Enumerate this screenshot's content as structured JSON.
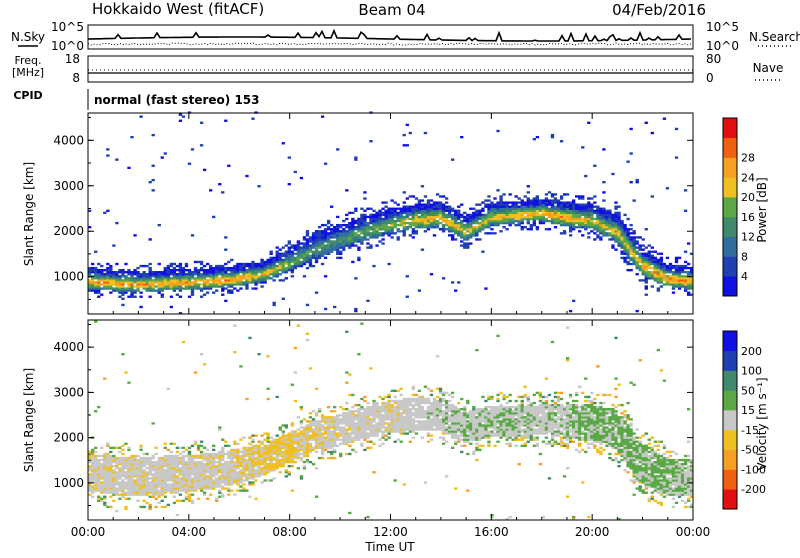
{
  "header": {
    "title": "Hokkaido West (fitACF)",
    "beam": "Beam 04",
    "date": "04/Feb/2016"
  },
  "noise_panel": {
    "left_label": "N.Sky",
    "right_label": "N.Search",
    "left_ticks": [
      "10^5",
      "10^0"
    ],
    "right_ticks": [
      "10^5",
      "10^0"
    ]
  },
  "freq_panel": {
    "left_label_1": "Freq.",
    "left_label_2": "[MHz]",
    "left_ticks": [
      "18",
      "8"
    ],
    "right_label": "Nave",
    "right_ticks": [
      "80",
      "0"
    ]
  },
  "cpid_panel": {
    "label": "CPID",
    "text": "normal (fast stereo) 153"
  },
  "x_axis": {
    "label": "Time UT",
    "ticks": [
      "00:00",
      "04:00",
      "08:00",
      "12:00",
      "16:00",
      "20:00",
      "00:00"
    ]
  },
  "power_panel": {
    "ylabel": "Slant Range [km]",
    "yticks": [
      "4000",
      "3000",
      "2000",
      "1000"
    ],
    "colorbar_label": "Power [dB]",
    "colorbar_ticks": [
      "28",
      "24",
      "20",
      "16",
      "12",
      "8",
      "4"
    ]
  },
  "velocity_panel": {
    "ylabel": "Slant Range [km]",
    "yticks": [
      "4000",
      "3000",
      "2000",
      "1000"
    ],
    "colorbar_label": "Velocity [m s⁻¹]",
    "colorbar_ticks": [
      "200",
      "100",
      "50",
      "15",
      "-15",
      "-50",
      "-100",
      "-200"
    ]
  },
  "chart_data": [
    {
      "type": "heatmap",
      "name": "power",
      "x_range_hours": [
        0,
        24
      ],
      "ylim": [
        180,
        4600
      ],
      "yticks": [
        1000,
        2000,
        3000,
        4000
      ],
      "colorbar": {
        "levels": [
          0,
          4,
          8,
          12,
          16,
          20,
          24,
          28,
          32
        ],
        "colors": [
          "#1010e0",
          "#1f40b0",
          "#2f6e9e",
          "#3f8a6a",
          "#5aa845",
          "#f0c020",
          "#f5a020",
          "#f06010",
          "#e01010"
        ]
      },
      "band_profile": {
        "hours": [
          0,
          1,
          2,
          3,
          4,
          5,
          6,
          7,
          8,
          9,
          10,
          11,
          12,
          13,
          14,
          15,
          16,
          17,
          18,
          19,
          20,
          21,
          22,
          23,
          24
        ],
        "center_km": [
          950,
          900,
          880,
          900,
          920,
          950,
          1000,
          1100,
          1350,
          1650,
          1850,
          2050,
          2200,
          2300,
          2350,
          2050,
          2350,
          2400,
          2450,
          2350,
          2300,
          2050,
          1300,
          1000,
          950
        ],
        "width_km": [
          500,
          450,
          450,
          450,
          450,
          450,
          450,
          450,
          500,
          550,
          550,
          550,
          550,
          550,
          550,
          550,
          500,
          500,
          500,
          550,
          550,
          650,
          600,
          500,
          500
        ],
        "peak_power_db": [
          28,
          28,
          27,
          27,
          28,
          28,
          28,
          24,
          20,
          16,
          16,
          18,
          20,
          24,
          26,
          22,
          24,
          26,
          26,
          26,
          24,
          22,
          26,
          28,
          28
        ]
      }
    },
    {
      "type": "heatmap",
      "name": "velocity",
      "x_range_hours": [
        0,
        24
      ],
      "ylim": [
        180,
        4600
      ],
      "yticks": [
        1000,
        2000,
        3000,
        4000
      ],
      "colorbar": {
        "levels": [
          -250,
          -200,
          -100,
          -50,
          -15,
          15,
          50,
          100,
          200,
          250
        ],
        "colors": [
          "#e01010",
          "#f06010",
          "#f5a020",
          "#f0c020",
          "#c8c8c8",
          "#5aa845",
          "#3f8a6a",
          "#1f40b0",
          "#1010e0"
        ]
      },
      "band_profile": {
        "hours": [
          0,
          1,
          2,
          3,
          4,
          5,
          6,
          7,
          8,
          9,
          10,
          11,
          12,
          13,
          14,
          15,
          16,
          17,
          18,
          19,
          20,
          21,
          22,
          23,
          24
        ],
        "center_km": [
          1200,
          1150,
          1100,
          1150,
          1200,
          1250,
          1350,
          1500,
          1750,
          2000,
          2150,
          2300,
          2450,
          2500,
          2500,
          2200,
          2350,
          2350,
          2400,
          2350,
          2300,
          2150,
          1400,
          1100,
          1100
        ],
        "width_km": [
          800,
          850,
          850,
          850,
          800,
          800,
          750,
          700,
          700,
          700,
          700,
          700,
          700,
          750,
          750,
          700,
          700,
          700,
          700,
          750,
          800,
          900,
          900,
          800,
          800
        ],
        "dominant_velocity": [
          -5,
          -5,
          -5,
          -5,
          -5,
          -5,
          -10,
          -20,
          -20,
          -10,
          -5,
          0,
          -5,
          0,
          5,
          10,
          10,
          10,
          5,
          10,
          20,
          20,
          20,
          20,
          10
        ]
      }
    }
  ]
}
